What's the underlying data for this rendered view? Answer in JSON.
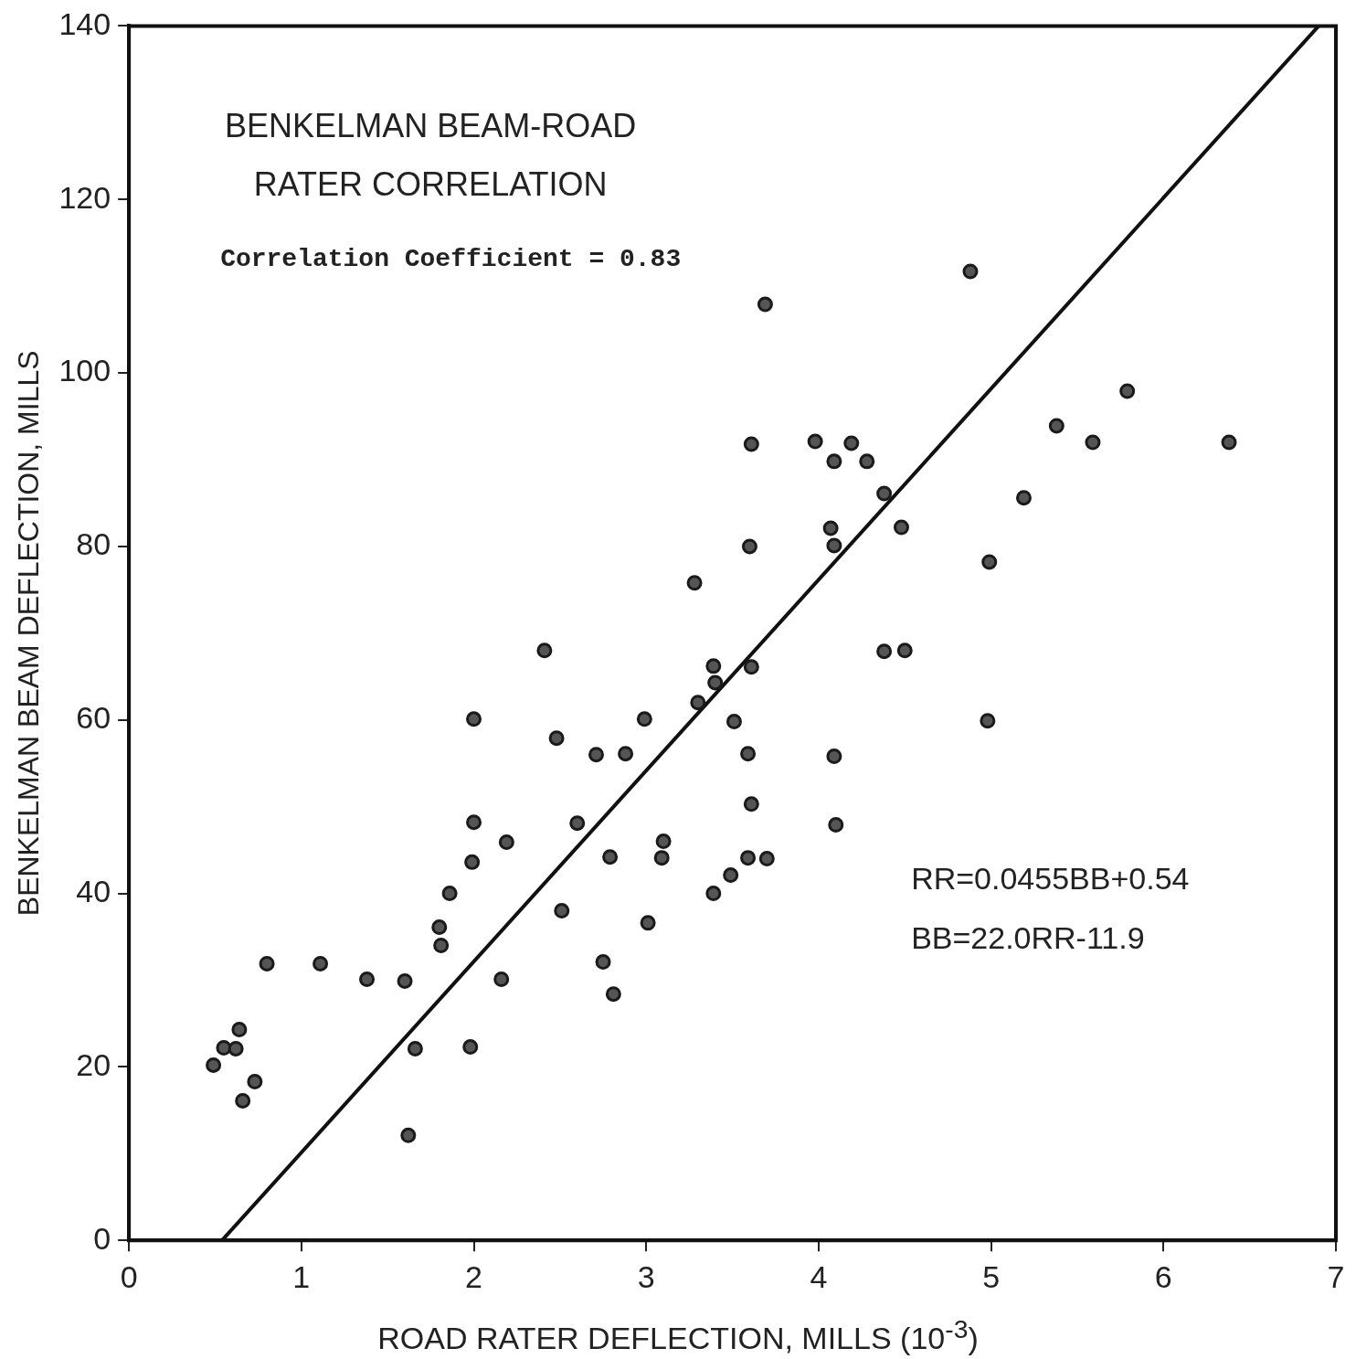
{
  "chart_data": {
    "type": "scatter",
    "title": "BENKELMAN BEAM-ROAD RATER CORRELATION",
    "xlabel": "ROAD RATER DEFLECTION, MILLS (10$^{-3}$)",
    "ylabel": "BENKELMAN BEAM DEFLECTION, MILLS",
    "annotations": [
      "Correlation Coefficient = 0.83",
      "RR=0.0455BB+0.54",
      "BB=22.0RR-11.9"
    ],
    "xlim": [
      0,
      7
    ],
    "ylim": [
      0,
      140
    ],
    "xticks": [
      0,
      1,
      2,
      3,
      4,
      5,
      6,
      7
    ],
    "yticks": [
      0,
      20,
      40,
      60,
      80,
      100,
      120,
      140
    ],
    "grid": false,
    "legend": false,
    "series": [
      {
        "marker": "circle",
        "color": "#1a1a1a",
        "x": [
          0.49,
          0.55,
          0.62,
          0.64,
          0.66,
          0.73,
          0.8,
          1.11,
          1.38,
          1.6,
          1.62,
          1.66,
          1.8,
          1.81,
          1.86,
          1.98,
          2.0,
          2.0,
          1.99,
          2.16,
          2.19,
          2.41,
          2.48,
          2.51,
          2.6,
          2.71,
          2.75,
          2.79,
          2.81,
          2.88,
          2.99,
          3.01,
          3.1,
          3.09,
          3.28,
          3.3,
          3.39,
          3.4,
          3.39,
          3.49,
          3.51,
          3.59,
          3.6,
          3.61,
          3.61,
          3.61,
          3.59,
          3.69,
          3.7,
          3.98,
          4.07,
          4.09,
          4.09,
          4.09,
          4.1,
          4.19,
          4.28,
          4.38,
          4.38,
          4.48,
          4.5,
          4.88,
          4.99,
          4.98,
          5.19,
          5.38,
          5.59,
          5.79,
          6.38
        ],
        "values": [
          20.2,
          22.2,
          22.1,
          24.3,
          16.1,
          18.3,
          31.9,
          31.9,
          30.1,
          29.9,
          12.1,
          22.1,
          36.1,
          34.0,
          40.0,
          22.3,
          60.1,
          48.2,
          43.6,
          30.1,
          45.9,
          68.0,
          57.9,
          38.0,
          48.1,
          56.0,
          32.1,
          44.2,
          28.4,
          56.1,
          60.1,
          36.6,
          46.0,
          44.1,
          75.8,
          62.0,
          66.2,
          64.3,
          40.0,
          42.1,
          59.8,
          56.1,
          80.0,
          91.8,
          66.1,
          50.3,
          44.1,
          107.9,
          44.0,
          92.1,
          82.1,
          89.8,
          80.1,
          55.8,
          47.9,
          91.9,
          89.8,
          86.1,
          67.9,
          82.2,
          68.0,
          111.7,
          78.2,
          59.9,
          85.6,
          93.9,
          92.0,
          97.9,
          92.0
        ]
      },
      {
        "type": "line",
        "marker": "none",
        "color": "#111111",
        "x": [
          0.54,
          6.9
        ],
        "values": [
          0,
          140
        ]
      }
    ]
  }
}
